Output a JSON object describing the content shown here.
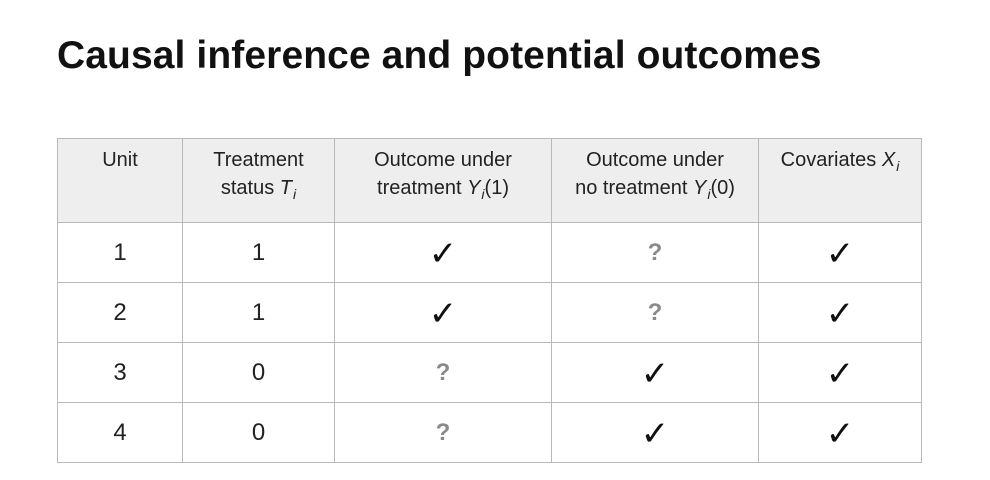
{
  "title": "Causal inference and potential outcomes",
  "table": {
    "headers": {
      "unit": "Unit",
      "treatment_line1": "Treatment",
      "treatment_line2": "status",
      "treatment_symbol": "T",
      "y1_line1": "Outcome under",
      "y1_line2": "treatment",
      "y1_symbol": "Y",
      "y1_arg": "(1)",
      "y0_line1": "Outcome under",
      "y0_line2": "no treatment",
      "y0_symbol": "Y",
      "y0_arg": "(0)",
      "covariates": "Covariates",
      "covariates_symbol": "X",
      "subscript": "i"
    },
    "rows": [
      {
        "unit": "1",
        "treatment": "1",
        "y1": "✓",
        "y0": "?",
        "x": "✓"
      },
      {
        "unit": "2",
        "treatment": "1",
        "y1": "✓",
        "y0": "?",
        "x": "✓"
      },
      {
        "unit": "3",
        "treatment": "0",
        "y1": "?",
        "y0": "✓",
        "x": "✓"
      },
      {
        "unit": "4",
        "treatment": "0",
        "y1": "?",
        "y0": "✓",
        "x": "✓"
      }
    ]
  }
}
